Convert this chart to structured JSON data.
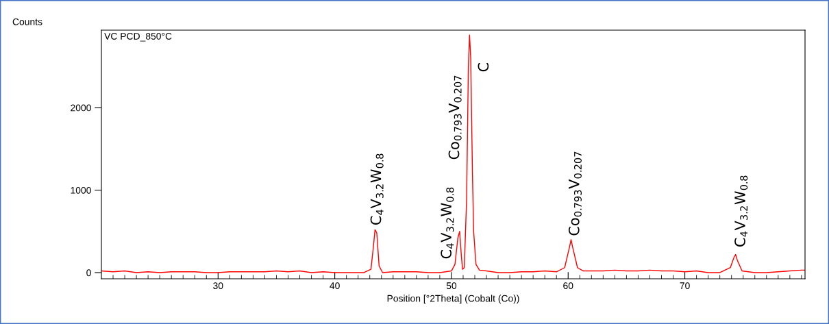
{
  "chart_data": {
    "type": "line",
    "xlabel": "Position [°2Theta] (Cobalt (Co))",
    "ylabel": "Counts",
    "x": [
      20,
      21,
      22,
      23,
      24,
      25,
      26,
      27,
      28,
      29,
      30,
      31,
      32,
      33,
      34,
      35,
      36,
      37,
      38,
      39,
      40,
      41,
      42,
      42.5,
      43.1,
      43.3,
      43.45,
      43.6,
      43.8,
      44.1,
      45,
      46,
      47,
      48,
      49,
      50.0,
      50.3,
      50.55,
      50.7,
      50.85,
      50.95,
      51.1,
      51.3,
      51.45,
      51.55,
      51.65,
      51.8,
      51.9,
      52.1,
      52.4,
      53,
      54,
      55,
      56,
      57,
      58,
      59,
      59.7,
      60.1,
      60.25,
      60.4,
      60.8,
      61.3,
      62,
      63,
      64,
      65,
      66,
      67,
      68,
      69,
      70,
      71,
      72,
      73,
      73.9,
      74.2,
      74.35,
      74.5,
      74.9,
      76,
      77,
      78,
      79,
      80,
      80.3
    ],
    "series": [
      {
        "color": "#ff0000",
        "values": [
          20,
          10,
          20,
          0,
          10,
          0,
          10,
          10,
          10,
          0,
          0,
          10,
          10,
          10,
          10,
          20,
          10,
          20,
          0,
          10,
          0,
          0,
          0,
          0,
          40,
          300,
          520,
          480,
          80,
          0,
          10,
          10,
          10,
          0,
          0,
          20,
          100,
          420,
          500,
          200,
          40,
          60,
          900,
          2500,
          2880,
          2600,
          1200,
          500,
          100,
          30,
          20,
          0,
          0,
          10,
          10,
          20,
          10,
          60,
          300,
          400,
          300,
          60,
          20,
          20,
          20,
          30,
          20,
          20,
          30,
          20,
          20,
          10,
          20,
          0,
          0,
          60,
          180,
          220,
          150,
          20,
          0,
          0,
          10,
          20,
          30,
          30
        ]
      }
    ],
    "xlim": [
      20,
      80.3
    ],
    "ylim": [
      -75,
      2940
    ],
    "xticks": [
      {
        "value": 21,
        "label": null
      },
      {
        "value": 22,
        "label": null
      },
      {
        "value": 23,
        "label": null
      },
      {
        "value": 24,
        "label": null
      },
      {
        "value": 25,
        "label": null
      },
      {
        "value": 26,
        "label": null
      },
      {
        "value": 27,
        "label": null
      },
      {
        "value": 28,
        "label": null
      },
      {
        "value": 29,
        "label": null
      },
      30,
      {
        "value": 31,
        "label": null
      },
      {
        "value": 32,
        "label": null
      },
      {
        "value": 33,
        "label": null
      },
      {
        "value": 34,
        "label": null
      },
      {
        "value": 35,
        "label": null
      },
      {
        "value": 36,
        "label": null
      },
      {
        "value": 37,
        "label": null
      },
      {
        "value": 38,
        "label": null
      },
      {
        "value": 39,
        "label": null
      },
      40,
      {
        "value": 41,
        "label": null
      },
      {
        "value": 42,
        "label": null
      },
      {
        "value": 43,
        "label": null
      },
      {
        "value": 44,
        "label": null
      },
      {
        "value": 45,
        "label": null
      },
      {
        "value": 46,
        "label": null
      },
      {
        "value": 47,
        "label": null
      },
      {
        "value": 48,
        "label": null
      },
      {
        "value": 49,
        "label": null
      },
      50,
      {
        "value": 51,
        "label": null
      },
      {
        "value": 52,
        "label": null
      },
      {
        "value": 53,
        "label": null
      },
      {
        "value": 54,
        "label": null
      },
      {
        "value": 55,
        "label": null
      },
      {
        "value": 56,
        "label": null
      },
      {
        "value": 57,
        "label": null
      },
      {
        "value": 58,
        "label": null
      },
      {
        "value": 59,
        "label": null
      },
      60,
      {
        "value": 61,
        "label": null
      },
      {
        "value": 62,
        "label": null
      },
      {
        "value": 63,
        "label": null
      },
      {
        "value": 64,
        "label": null
      },
      {
        "value": 65,
        "label": null
      },
      {
        "value": 66,
        "label": null
      },
      {
        "value": 67,
        "label": null
      },
      {
        "value": 68,
        "label": null
      },
      {
        "value": 69,
        "label": null
      },
      70,
      {
        "value": 71,
        "label": null
      },
      {
        "value": 72,
        "label": null
      },
      {
        "value": 73,
        "label": null
      },
      {
        "value": 74,
        "label": null
      },
      {
        "value": 75,
        "label": null
      },
      {
        "value": 76,
        "label": null
      },
      {
        "value": 77,
        "label": null
      },
      {
        "value": 78,
        "label": null
      },
      {
        "value": 79,
        "label": null
      },
      {
        "value": 80,
        "label": null
      }
    ],
    "yticks": [
      0,
      1000,
      2000
    ],
    "grid": false,
    "legend": false,
    "marker": "none",
    "line_style": "solid",
    "annotations": [
      "VC PCD_850°C",
      {
        "text": "C$_{4}$V$_{3.2}$W$_{0.8}$",
        "x": 43.45,
        "y": 520
      },
      {
        "text": "C$_{4}$V$_{3.2}$W$_{0.8}$",
        "x": 50.7,
        "y": 500
      },
      {
        "text": "Co$_{0.793}$V$_{0.207}$",
        "x": 51.55,
        "y": 2880
      },
      {
        "text": "C",
        "x": 51.55,
        "y": 2880
      },
      {
        "text": "Co$_{0.793}$V$_{0.207}$",
        "x": 60.25,
        "y": 400
      },
      {
        "text": "C$_{4}$V$_{3.2}$W$_{0.8}$",
        "x": 74.35,
        "y": 220
      }
    ]
  }
}
